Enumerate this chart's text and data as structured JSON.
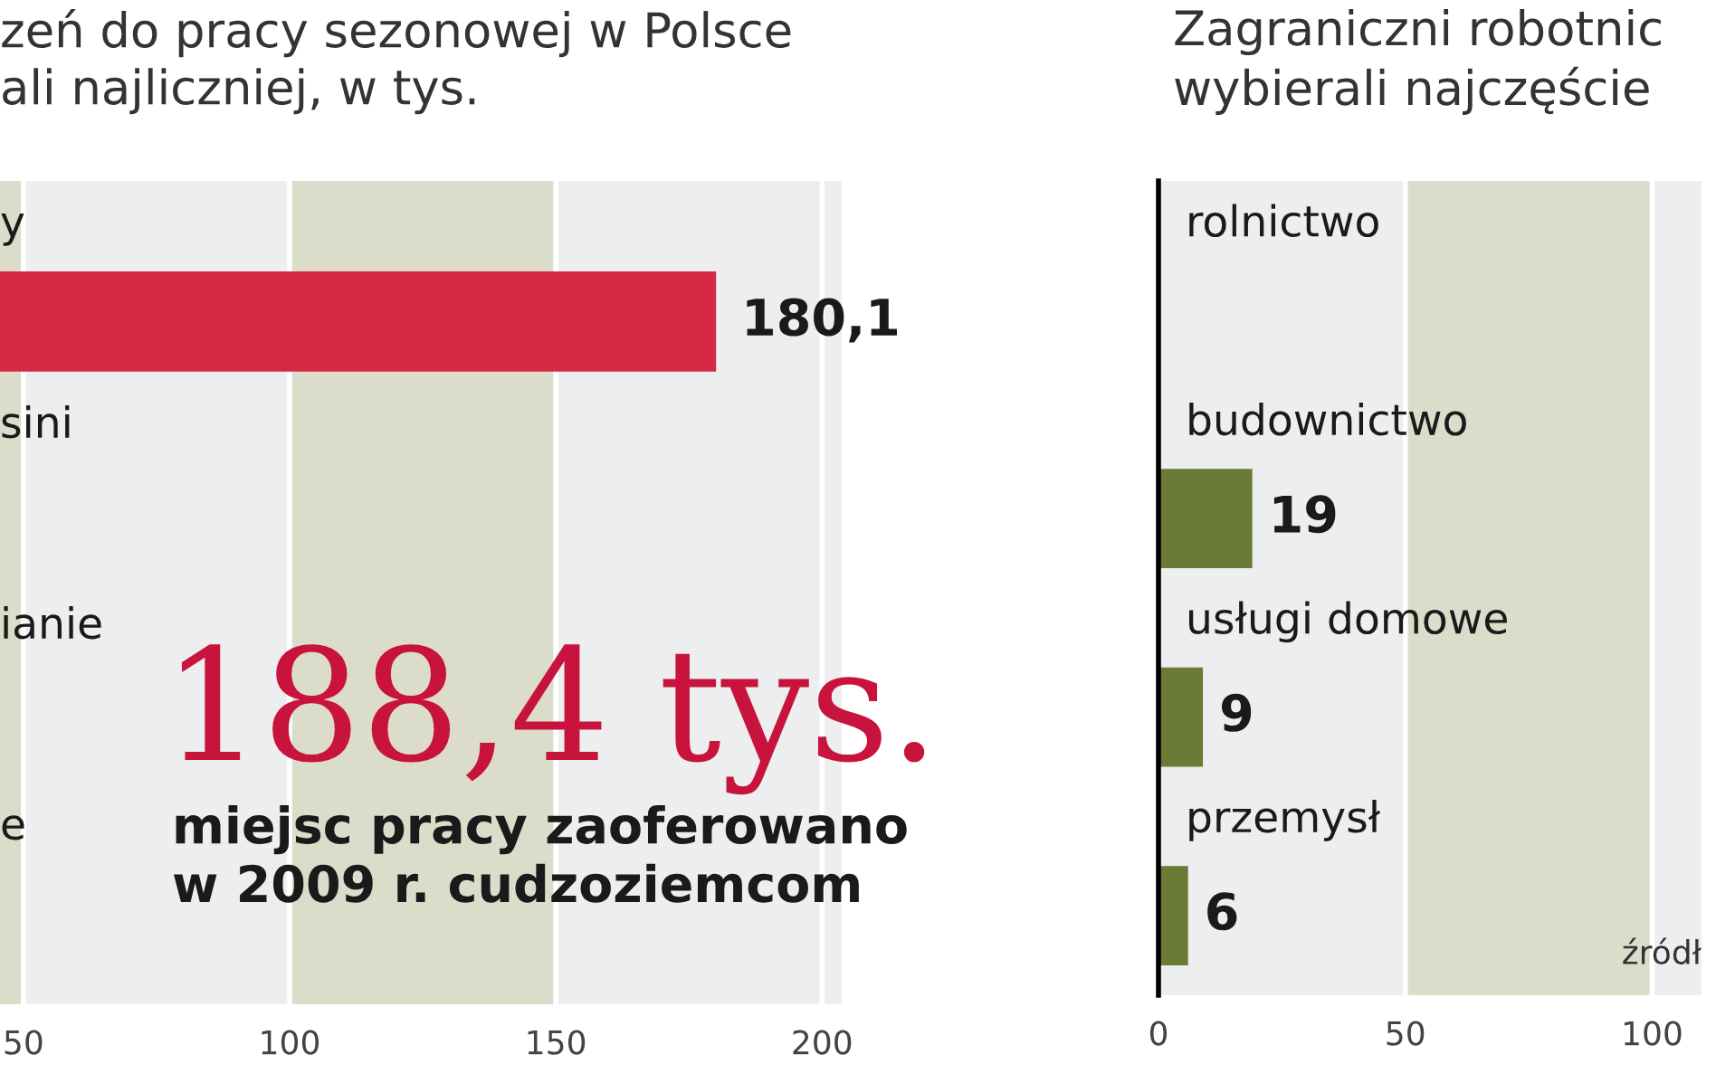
{
  "chart_data": [
    {
      "type": "bar",
      "orientation": "horizontal",
      "title": "zeń do pracy sezonowej w Polsce\nali najliczniej, w tys.",
      "categories": [
        "y",
        "sini",
        "ianie",
        "e"
      ],
      "values": [
        180.1,
        null,
        null,
        null
      ],
      "colors": [
        "#d42a45",
        "#6b7a35",
        "#6b7a35",
        "#6b7a35"
      ],
      "value_labels": [
        "180,1",
        null,
        null,
        null
      ],
      "xlim": [
        45.6,
        203.7
      ],
      "xticks": [
        50,
        100,
        150,
        200
      ],
      "grid": "x",
      "bands": [
        {
          "axis": "x",
          "from": 45.6,
          "to": 50,
          "color": "#dcdccb"
        },
        {
          "axis": "x",
          "from": 100,
          "to": 150,
          "color": "#dcdccb"
        }
      ],
      "annotations": [
        "188,4 tys.",
        "miejsc pracy zaoferowano\nw 2009 r. cudzoziemcom"
      ]
    },
    {
      "type": "bar",
      "orientation": "horizontal",
      "title": "Zagraniczni robotnic\nwybierali najczęście",
      "categories": [
        "rolnictwo",
        "budownictwo",
        "usługi domowe",
        "przemysł"
      ],
      "values": [
        null,
        19,
        9,
        6
      ],
      "colors": [
        "#d42a45",
        "#6b7a35",
        "#6b7a35",
        "#6b7a35"
      ],
      "value_labels": [
        null,
        "19",
        "9",
        "6"
      ],
      "xlim": [
        0,
        110
      ],
      "xticks": [
        0,
        50,
        100
      ],
      "grid": "x",
      "bands": [
        {
          "axis": "x",
          "from": 50,
          "to": 100,
          "color": "#dcdccb"
        }
      ],
      "annotations": [
        "źródł"
      ]
    }
  ]
}
